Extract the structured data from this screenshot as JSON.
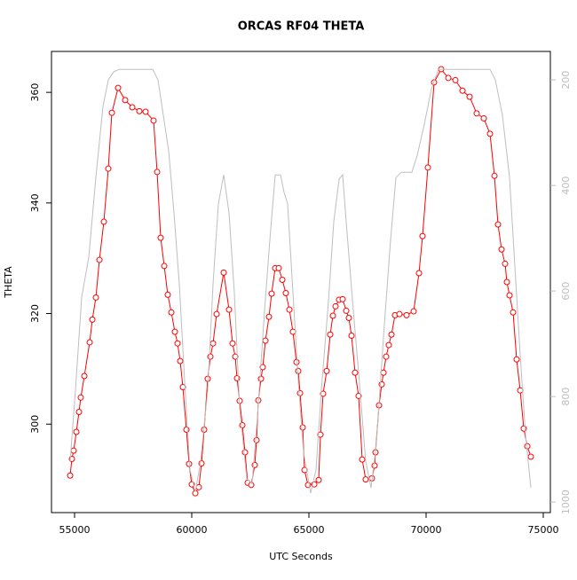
{
  "chart_data": {
    "type": "line",
    "title": "ORCAS RF04 THETA",
    "x_label": "UTC Seconds",
    "y_label": "THETA",
    "xlim": [
      54015,
      75303
    ],
    "xticks": [
      55000,
      60000,
      65000,
      70000,
      75000
    ],
    "ylim": [
      284,
      367.4
    ],
    "yticks": [
      300,
      320,
      340,
      360
    ],
    "y2lim": [
      1020,
      146
    ],
    "y2ticks": [
      200,
      400,
      600,
      800,
      1000
    ],
    "series": [
      {
        "color": "#ff0000",
        "marker": "circle",
        "x": [
          54811,
          54886,
          54962,
          55076,
          55189,
          55265,
          55417,
          55644,
          55758,
          55909,
          56061,
          56250,
          56439,
          56591,
          56856,
          57159,
          57462,
          57765,
          58030,
          58371,
          58523,
          58674,
          58826,
          58977,
          59129,
          59280,
          59394,
          59508,
          59621,
          59773,
          59886,
          60000,
          60152,
          60303,
          60417,
          60530,
          60682,
          60795,
          60909,
          61061,
          61364,
          61591,
          61742,
          61856,
          61932,
          62045,
          62159,
          62273,
          62386,
          62538,
          62689,
          62765,
          62841,
          62955,
          63030,
          63144,
          63295,
          63409,
          63561,
          63712,
          63864,
          64015,
          64167,
          64318,
          64470,
          64545,
          64621,
          64735,
          64811,
          64962,
          65227,
          65417,
          65492,
          65606,
          65758,
          65909,
          66023,
          66136,
          66288,
          66439,
          66591,
          66705,
          66818,
          66970,
          67121,
          67273,
          67424,
          67689,
          67803,
          67841,
          67992,
          68106,
          68182,
          68295,
          68409,
          68523,
          68674,
          68864,
          69167,
          69470,
          69697,
          69848,
          70076,
          70341,
          70644,
          70947,
          71250,
          71553,
          71856,
          72159,
          72462,
          72727,
          72917,
          73068,
          73220,
          73371,
          73447,
          73561,
          73712,
          73864,
          74015,
          74167,
          74318,
          74470
        ],
        "values": [
          290.7,
          293.7,
          295.2,
          298.6,
          302.2,
          304.8,
          308.7,
          314.8,
          318.9,
          322.9,
          329.7,
          336.6,
          346.2,
          356.3,
          360.8,
          358.6,
          357.3,
          356.6,
          356.5,
          354.9,
          345.6,
          333.7,
          328.6,
          323.4,
          320.2,
          316.7,
          314.6,
          311.4,
          306.7,
          299.0,
          292.8,
          289.1,
          287.5,
          288.6,
          292.9,
          299.0,
          308.2,
          312.2,
          314.6,
          319.9,
          327.4,
          320.7,
          314.6,
          312.2,
          308.3,
          304.2,
          299.8,
          294.9,
          289.4,
          289.0,
          292.6,
          297.1,
          304.3,
          308.2,
          310.3,
          315.1,
          319.4,
          323.6,
          328.2,
          328.2,
          326.1,
          323.7,
          320.7,
          316.7,
          311.2,
          309.6,
          305.6,
          299.4,
          291.7,
          289.0,
          289.1,
          289.9,
          298.1,
          305.5,
          309.6,
          316.2,
          319.6,
          321.3,
          322.5,
          322.6,
          320.5,
          319.2,
          316.0,
          309.3,
          305.1,
          293.6,
          290.0,
          290.2,
          292.5,
          294.9,
          303.4,
          307.2,
          309.3,
          312.2,
          314.3,
          316.2,
          319.7,
          319.9,
          319.7,
          320.4,
          327.3,
          334.0,
          346.4,
          361.8,
          364.2,
          362.6,
          362.2,
          360.3,
          359.2,
          356.2,
          355.3,
          352.5,
          344.9,
          336.1,
          331.6,
          329.0,
          325.7,
          323.3,
          320.2,
          311.7,
          306.1,
          299.2,
          296.0,
          294.1
        ]
      },
      {
        "color": "#bebebe",
        "axis": "y2",
        "x": [
          54811,
          55038,
          55303,
          55606,
          55909,
          56212,
          56439,
          56667,
          56894,
          58333,
          58561,
          58788,
          59015,
          59242,
          59470,
          59697,
          59924,
          60152,
          60379,
          60682,
          60909,
          61136,
          61364,
          61591,
          61818,
          62045,
          62348,
          62576,
          62803,
          63106,
          63333,
          63561,
          63788,
          63939,
          64091,
          64318,
          64545,
          64773,
          65076,
          65303,
          65530,
          65833,
          66061,
          66288,
          66439,
          66591,
          66894,
          67121,
          67424,
          67652,
          67879,
          68182,
          68485,
          68712,
          68939,
          69394,
          69621,
          69924,
          70227,
          70530,
          70833,
          72727,
          72955,
          73258,
          73561,
          73788,
          74015,
          74242,
          74470
        ],
        "values": [
          923,
          788,
          612,
          536,
          385,
          250,
          200,
          185,
          180,
          180,
          200,
          267,
          334,
          452,
          587,
          771,
          939,
          981,
          923,
          788,
          587,
          435,
          380,
          452,
          603,
          822,
          956,
          965,
          838,
          637,
          503,
          380,
          380,
          413,
          435,
          603,
          771,
          906,
          983,
          939,
          788,
          620,
          469,
          388,
          380,
          469,
          637,
          755,
          923,
          973,
          889,
          687,
          503,
          385,
          375,
          375,
          343,
          284,
          217,
          180,
          180,
          180,
          200,
          267,
          385,
          553,
          721,
          872,
          973
        ]
      }
    ]
  }
}
